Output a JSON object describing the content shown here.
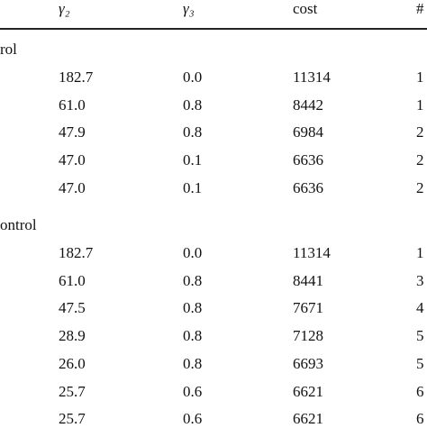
{
  "table": {
    "header": [
      "γ₂",
      "γ₃",
      "cost",
      "#"
    ],
    "sections": [
      {
        "label": "rol",
        "rows": [
          [
            "182.7",
            "0.0",
            "11314",
            "1"
          ],
          [
            "61.0",
            "0.8",
            "8442",
            "1"
          ],
          [
            "47.9",
            "0.8",
            "6984",
            "2"
          ],
          [
            "47.0",
            "0.1",
            "6636",
            "2"
          ],
          [
            "47.0",
            "0.1",
            "6636",
            "2"
          ]
        ]
      },
      {
        "label": "ontrol",
        "rows": [
          [
            "182.7",
            "0.0",
            "11314",
            "1"
          ],
          [
            "61.0",
            "0.8",
            "8441",
            "3"
          ],
          [
            "47.5",
            "0.8",
            "7671",
            "4"
          ],
          [
            "28.9",
            "0.8",
            "7128",
            "5"
          ],
          [
            "26.0",
            "0.8",
            "6693",
            "5"
          ],
          [
            "25.7",
            "0.6",
            "6621",
            "6"
          ],
          [
            "25.7",
            "0.6",
            "6621",
            "6"
          ]
        ]
      }
    ]
  }
}
